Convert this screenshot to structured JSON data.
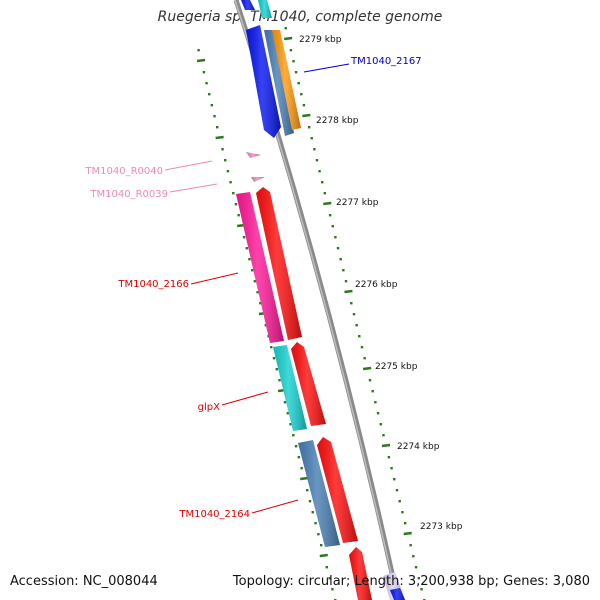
{
  "title": "Ruegeria sp. TM1040, complete genome",
  "footer": {
    "accession": "Accession: NC_008044",
    "topology": "Topology: circular; Length: 3,200,938 bp; Genes: 3,080"
  },
  "ticks": [
    "2279 kbp",
    "2278 kbp",
    "2277 kbp",
    "2276 kbp",
    "2275 kbp",
    "2274 kbp",
    "2273 kbp"
  ],
  "gene_labels": [
    {
      "name": "TM1040_2167",
      "color": "#0000cc"
    },
    {
      "name": "TM1040_R0040",
      "color": "#ee88bb"
    },
    {
      "name": "TM1040_R0039",
      "color": "#ee88bb"
    },
    {
      "name": "TM1040_2166",
      "color": "#dd0000"
    },
    {
      "name": "glpX",
      "color": "#dd0000"
    },
    {
      "name": "TM1040_2164",
      "color": "#dd0000"
    }
  ],
  "colors": {
    "backbone": "#8a8a8a",
    "tick_mark": "#2a7a1a",
    "gene_blue": "#0a18f0",
    "gene_steel": "#4a7fb5",
    "gene_orange": "#ff9a10",
    "gene_cyan": "#18d0d0",
    "gene_pink": "#ff1a9a",
    "gene_red": "#ff1010",
    "gene_lightpink": "#ee88bb",
    "gene_lavender": "#d8d0f0"
  }
}
